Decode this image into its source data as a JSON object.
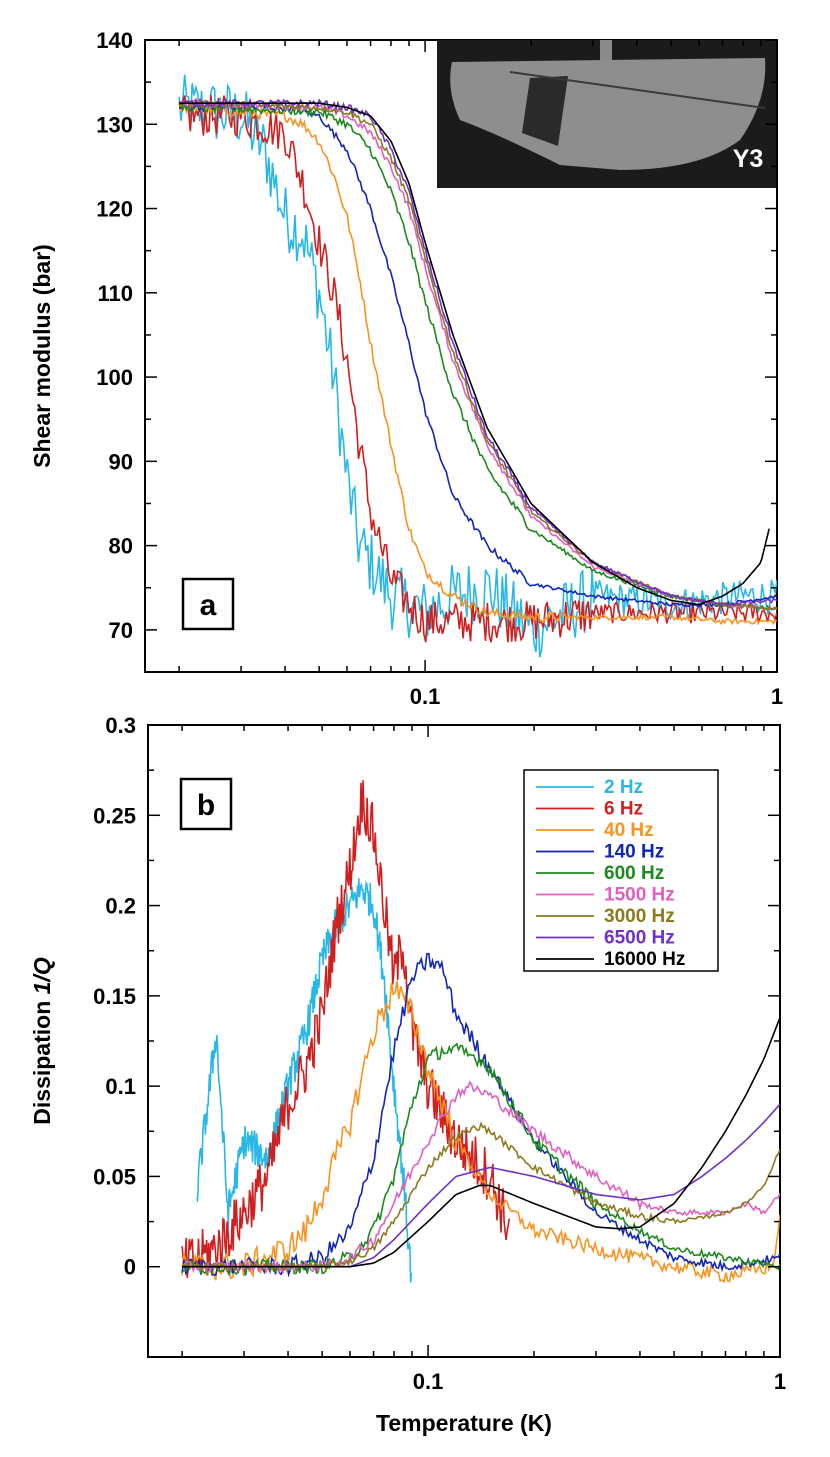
{
  "chart_data": [
    {
      "type": "line",
      "panel": "a",
      "xlabel": "",
      "ylabel": "Shear modulus (bar)",
      "xscale": "log",
      "xlim": [
        0.016,
        1.0
      ],
      "ylim": [
        65,
        140
      ],
      "x_ticks": [
        {
          "value": 0.1,
          "label": "0.1"
        },
        {
          "value": 1,
          "label": "1"
        }
      ],
      "y_ticks": [
        70,
        80,
        90,
        100,
        110,
        120,
        130,
        140
      ],
      "inset_label": "Y3",
      "series": [
        {
          "name": "2 Hz",
          "color": "#29b8e6",
          "noise": 4.0,
          "noise_from": 0.3,
          "x": [
            0.02,
            0.03,
            0.035,
            0.04,
            0.045,
            0.05,
            0.055,
            0.06,
            0.065,
            0.07,
            0.08,
            0.09,
            0.1,
            0.12,
            0.15,
            0.2,
            0.25,
            0.3,
            0.5,
            0.8,
            1.0
          ],
          "y": [
            132,
            131,
            127,
            119,
            117,
            110,
            100,
            88,
            80,
            78,
            74,
            73,
            72,
            74,
            75,
            70,
            72,
            74,
            73,
            74,
            74
          ]
        },
        {
          "name": "6 Hz",
          "color": "#d11f1f",
          "noise": 2.5,
          "noise_from": 0.3,
          "x": [
            0.02,
            0.03,
            0.04,
            0.045,
            0.05,
            0.055,
            0.06,
            0.065,
            0.07,
            0.08,
            0.09,
            0.1,
            0.12,
            0.15,
            0.2,
            0.3,
            0.5,
            0.7,
            1.0
          ],
          "y": [
            131,
            131,
            129,
            123,
            116,
            110,
            102,
            92,
            84,
            76,
            73,
            71,
            71,
            71,
            71,
            72,
            72,
            72,
            72
          ]
        },
        {
          "name": "40 Hz",
          "color": "#f7931e",
          "noise": 0.6,
          "noise_from": 0.25,
          "x": [
            0.02,
            0.04,
            0.045,
            0.05,
            0.055,
            0.06,
            0.065,
            0.07,
            0.08,
            0.09,
            0.1,
            0.12,
            0.15,
            0.2,
            0.3,
            0.5,
            0.7,
            1.0
          ],
          "y": [
            132,
            131,
            130,
            128,
            124,
            119,
            112,
            104,
            92,
            82,
            77,
            74,
            72,
            71.5,
            71.5,
            71.5,
            71,
            71
          ]
        },
        {
          "name": "140 Hz",
          "color": "#1026b5",
          "noise": 0.4,
          "noise_from": 0.2,
          "x": [
            0.02,
            0.04,
            0.05,
            0.06,
            0.07,
            0.08,
            0.09,
            0.1,
            0.12,
            0.15,
            0.2,
            0.3,
            0.5,
            0.7,
            1.0
          ],
          "y": [
            132,
            132,
            131,
            127,
            120,
            112,
            104,
            96,
            86,
            80,
            75.5,
            74,
            73,
            73,
            74
          ]
        },
        {
          "name": "600 Hz",
          "color": "#1d8a1d",
          "noise": 0.5,
          "noise_from": 0.2,
          "x": [
            0.02,
            0.05,
            0.06,
            0.07,
            0.08,
            0.09,
            0.1,
            0.12,
            0.15,
            0.2,
            0.3,
            0.5,
            0.7,
            1.0
          ],
          "y": [
            132,
            131.5,
            130,
            127,
            122,
            116,
            109,
            98,
            89,
            82,
            77,
            74,
            73,
            72.5
          ]
        },
        {
          "name": "1500 Hz",
          "color": "#e060c0",
          "noise": 0.4,
          "noise_from": 0.2,
          "x": [
            0.02,
            0.05,
            0.06,
            0.07,
            0.08,
            0.09,
            0.1,
            0.12,
            0.15,
            0.2,
            0.3,
            0.5,
            0.7,
            1.0
          ],
          "y": [
            132.5,
            132,
            131,
            129,
            125,
            120,
            113,
            102,
            92,
            83.5,
            77.5,
            74,
            73,
            72.5
          ]
        },
        {
          "name": "3000 Hz",
          "color": "#8b7a1e",
          "noise": 0.4,
          "noise_from": 0.2,
          "x": [
            0.02,
            0.05,
            0.06,
            0.07,
            0.08,
            0.09,
            0.1,
            0.12,
            0.15,
            0.2,
            0.3,
            0.5,
            0.7,
            1.0
          ],
          "y": [
            132.5,
            132,
            131.5,
            130,
            126,
            121,
            114,
            103,
            92.5,
            84,
            78,
            74,
            73,
            72.5
          ]
        },
        {
          "name": "6500 Hz",
          "color": "#7030c8",
          "noise": 0.4,
          "noise_from": 0.2,
          "x": [
            0.02,
            0.05,
            0.06,
            0.07,
            0.08,
            0.09,
            0.1,
            0.12,
            0.15,
            0.2,
            0.3,
            0.5,
            0.7,
            1.0
          ],
          "y": [
            132.5,
            132.5,
            132,
            131,
            127,
            122,
            115,
            104,
            93,
            84.5,
            78,
            74,
            73,
            73.5
          ]
        },
        {
          "name": "16000 Hz",
          "color": "#000000",
          "noise": 0.0,
          "noise_from": 1.0,
          "x": [
            0.02,
            0.05,
            0.06,
            0.07,
            0.08,
            0.09,
            0.1,
            0.12,
            0.15,
            0.2,
            0.3,
            0.4,
            0.5,
            0.6,
            0.7,
            0.8,
            0.9,
            0.95
          ],
          "y": [
            132.5,
            132.5,
            132,
            131,
            128,
            123,
            116,
            105,
            94,
            85,
            78,
            75,
            73.5,
            73,
            74,
            75.5,
            78,
            82
          ]
        }
      ]
    },
    {
      "type": "line",
      "panel": "b",
      "xlabel": "Temperature (K)",
      "ylabel": "Dissipation 1/Q",
      "ylabel_prefix": "Dissipation ",
      "ylabel_italic": "1/Q",
      "xscale": "log",
      "xlim": [
        0.016,
        1.0
      ],
      "ylim": [
        -0.05,
        0.3
      ],
      "x_ticks": [
        {
          "value": 0.1,
          "label": "0.1"
        },
        {
          "value": 1,
          "label": "1"
        }
      ],
      "y_ticks": [
        {
          "value": 0,
          "label": "0"
        },
        {
          "value": 0.05,
          "label": "0.05"
        },
        {
          "value": 0.1,
          "label": "0.1"
        },
        {
          "value": 0.15,
          "label": "0.15"
        },
        {
          "value": 0.2,
          "label": "0.2"
        },
        {
          "value": 0.25,
          "label": "0.25"
        },
        {
          "value": 0.3,
          "label": "0.3"
        }
      ],
      "legend_position": "top-right",
      "series": [
        {
          "name": "2 Hz",
          "color": "#29b8e6",
          "noise": 0.02,
          "noise_from": 0.02,
          "x": [
            0.022,
            0.025,
            0.027,
            0.03,
            0.035,
            0.04,
            0.045,
            0.05,
            0.055,
            0.06,
            0.065,
            0.07,
            0.075,
            0.08,
            0.085,
            0.09
          ],
          "y": [
            0.04,
            0.13,
            0.03,
            0.07,
            0.06,
            0.1,
            0.13,
            0.17,
            0.19,
            0.2,
            0.21,
            0.2,
            0.16,
            0.1,
            0.05,
            -0.01
          ]
        },
        {
          "name": "6 Hz",
          "color": "#d11f1f",
          "noise": 0.03,
          "noise_from": 0.02,
          "x": [
            0.02,
            0.025,
            0.03,
            0.035,
            0.04,
            0.045,
            0.05,
            0.055,
            0.06,
            0.065,
            0.07,
            0.075,
            0.08,
            0.085,
            0.09,
            0.1,
            0.12,
            0.15,
            0.17
          ],
          "y": [
            0.0,
            0.01,
            0.03,
            0.05,
            0.09,
            0.11,
            0.14,
            0.19,
            0.22,
            0.26,
            0.24,
            0.2,
            0.16,
            0.18,
            0.13,
            0.1,
            0.07,
            0.05,
            0.02
          ]
        },
        {
          "name": "40 Hz",
          "color": "#f7931e",
          "noise": 0.008,
          "noise_from": 0.12,
          "x": [
            0.02,
            0.03,
            0.04,
            0.045,
            0.05,
            0.06,
            0.07,
            0.08,
            0.09,
            0.1,
            0.12,
            0.15,
            0.2,
            0.3,
            0.5,
            0.7,
            0.95,
            1.0
          ],
          "y": [
            0.0,
            0.0,
            0.01,
            0.02,
            0.04,
            0.08,
            0.13,
            0.155,
            0.14,
            0.11,
            0.07,
            0.04,
            0.02,
            0.01,
            0.0,
            -0.005,
            0.0,
            0.025
          ]
        },
        {
          "name": "140 Hz",
          "color": "#1026b5",
          "noise": 0.005,
          "noise_from": 0.15,
          "x": [
            0.02,
            0.04,
            0.05,
            0.06,
            0.07,
            0.08,
            0.09,
            0.1,
            0.11,
            0.12,
            0.15,
            0.2,
            0.3,
            0.4,
            0.5,
            0.7,
            1.0
          ],
          "y": [
            0.0,
            0.0,
            0.005,
            0.02,
            0.06,
            0.12,
            0.16,
            0.17,
            0.165,
            0.14,
            0.11,
            0.07,
            0.03,
            0.015,
            0.005,
            0.0,
            0.005
          ]
        },
        {
          "name": "600 Hz",
          "color": "#1d8a1d",
          "noise": 0.004,
          "noise_from": 0.3,
          "x": [
            0.02,
            0.05,
            0.06,
            0.07,
            0.08,
            0.09,
            0.1,
            0.11,
            0.12,
            0.14,
            0.15,
            0.2,
            0.3,
            0.4,
            0.5,
            0.7,
            1.0
          ],
          "y": [
            0.0,
            0.0,
            0.005,
            0.02,
            0.05,
            0.09,
            0.115,
            0.12,
            0.12,
            0.115,
            0.11,
            0.07,
            0.035,
            0.02,
            0.01,
            0.005,
            0.0
          ]
        },
        {
          "name": "1500 Hz",
          "color": "#e060c0",
          "noise": 0.003,
          "noise_from": 0.4,
          "x": [
            0.02,
            0.05,
            0.06,
            0.07,
            0.08,
            0.1,
            0.12,
            0.13,
            0.15,
            0.2,
            0.3,
            0.4,
            0.5,
            0.6,
            0.7,
            0.8,
            0.9,
            1.0
          ],
          "y": [
            0.0,
            0.0,
            0.005,
            0.015,
            0.035,
            0.07,
            0.095,
            0.1,
            0.095,
            0.075,
            0.05,
            0.035,
            0.03,
            0.03,
            0.03,
            0.035,
            0.03,
            0.04
          ]
        },
        {
          "name": "3000 Hz",
          "color": "#8b7a1e",
          "noise": 0.002,
          "noise_from": 0.5,
          "x": [
            0.02,
            0.05,
            0.06,
            0.07,
            0.08,
            0.1,
            0.12,
            0.14,
            0.15,
            0.2,
            0.3,
            0.4,
            0.5,
            0.6,
            0.7,
            0.8,
            0.9,
            1.0
          ],
          "y": [
            0.0,
            0.0,
            0.003,
            0.01,
            0.025,
            0.055,
            0.072,
            0.078,
            0.075,
            0.055,
            0.035,
            0.028,
            0.025,
            0.027,
            0.03,
            0.035,
            0.045,
            0.065
          ]
        },
        {
          "name": "6500 Hz",
          "color": "#7030c8",
          "noise": 0.0,
          "noise_from": 1.0,
          "x": [
            0.02,
            0.06,
            0.07,
            0.08,
            0.1,
            0.12,
            0.15,
            0.2,
            0.3,
            0.4,
            0.5,
            0.6,
            0.7,
            0.8,
            0.9,
            1.0
          ],
          "y": [
            0.0,
            0.0,
            0.005,
            0.015,
            0.035,
            0.05,
            0.055,
            0.05,
            0.04,
            0.037,
            0.04,
            0.05,
            0.06,
            0.07,
            0.08,
            0.09
          ]
        },
        {
          "name": "16000 Hz",
          "color": "#000000",
          "noise": 0.0,
          "noise_from": 1.0,
          "x": [
            0.02,
            0.06,
            0.07,
            0.08,
            0.1,
            0.12,
            0.14,
            0.15,
            0.2,
            0.3,
            0.35,
            0.4,
            0.5,
            0.6,
            0.7,
            0.8,
            0.9,
            1.0
          ],
          "y": [
            0.0,
            0.0,
            0.002,
            0.008,
            0.025,
            0.04,
            0.045,
            0.045,
            0.035,
            0.022,
            0.021,
            0.022,
            0.035,
            0.055,
            0.075,
            0.095,
            0.115,
            0.138
          ]
        }
      ]
    }
  ]
}
